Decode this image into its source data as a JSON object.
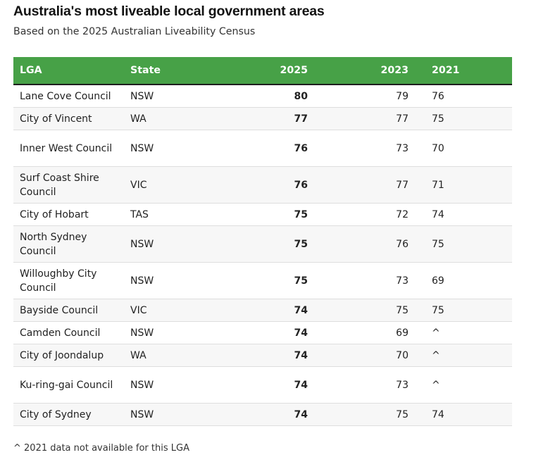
{
  "title": "Australia's most liveable local government areas",
  "subtitle": "Based on the 2025 Australian Liveability Census",
  "footnote": "^ 2021 data not available for this LGA",
  "colors": {
    "header_bg": "#47a147",
    "header_text": "#ffffff",
    "stripe": "#f7f7f7"
  },
  "chart_data": {
    "type": "table",
    "columns": [
      "LGA",
      "State",
      "2025",
      "2023",
      "2021"
    ],
    "rows": [
      {
        "lga": "Lane Cove Council",
        "state": "NSW",
        "y2025": "80",
        "y2023": "79",
        "y2021": "76",
        "lines": 1
      },
      {
        "lga": "City of Vincent",
        "state": "WA",
        "y2025": "77",
        "y2023": "77",
        "y2021": "75",
        "lines": 1
      },
      {
        "lga": "Inner West Council",
        "state": "NSW",
        "y2025": "76",
        "y2023": "73",
        "y2021": "70",
        "lines": 2
      },
      {
        "lga": "Surf Coast Shire Council",
        "state": "VIC",
        "y2025": "76",
        "y2023": "77",
        "y2021": "71",
        "lines": 2
      },
      {
        "lga": "City of Hobart",
        "state": "TAS",
        "y2025": "75",
        "y2023": "72",
        "y2021": "74",
        "lines": 1
      },
      {
        "lga": "North Sydney Council",
        "state": "NSW",
        "y2025": "75",
        "y2023": "76",
        "y2021": "75",
        "lines": 2
      },
      {
        "lga": "Willoughby City Council",
        "state": "NSW",
        "y2025": "75",
        "y2023": "73",
        "y2021": "69",
        "lines": 2
      },
      {
        "lga": "Bayside Council",
        "state": "VIC",
        "y2025": "74",
        "y2023": "75",
        "y2021": "75",
        "lines": 1
      },
      {
        "lga": "Camden Council",
        "state": "NSW",
        "y2025": "74",
        "y2023": "69",
        "y2021": "^",
        "lines": 1
      },
      {
        "lga": "City of Joondalup",
        "state": "WA",
        "y2025": "74",
        "y2023": "70",
        "y2021": "^",
        "lines": 1
      },
      {
        "lga": "Ku-ring-gai Council",
        "state": "NSW",
        "y2025": "74",
        "y2023": "73",
        "y2021": "^",
        "lines": 2
      },
      {
        "lga": "City of Sydney",
        "state": "NSW",
        "y2025": "74",
        "y2023": "75",
        "y2021": "74",
        "lines": 1
      }
    ]
  }
}
